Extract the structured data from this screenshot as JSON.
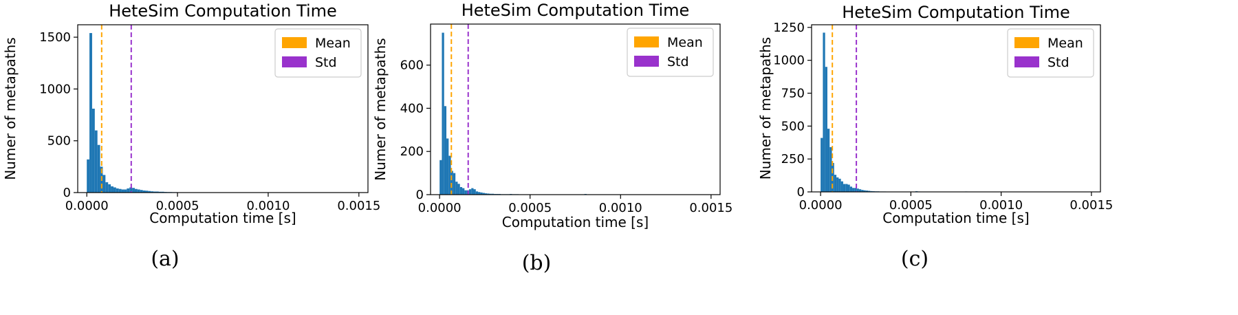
{
  "chart_data": [
    {
      "type": "bar",
      "caption": "(a)",
      "title": "HeteSim Computation Time",
      "xlabel": "Computation time [s]",
      "ylabel": "Numer of metapaths",
      "xlim": [
        -5e-05,
        0.00155
      ],
      "ylim": [
        0,
        1620
      ],
      "xticks": [
        0.0,
        0.0005,
        0.001,
        0.0015
      ],
      "xtick_labels": [
        "0.0000",
        "0.0005",
        "0.0010",
        "0.0015"
      ],
      "yticks": [
        0,
        500,
        1000,
        1500
      ],
      "ytick_labels": [
        "0",
        "500",
        "1000",
        "1500"
      ],
      "bin_start": 0.0,
      "bin_width": 1.47e-05,
      "values": [
        320,
        1540,
        810,
        600,
        460,
        250,
        170,
        100,
        80,
        60,
        50,
        40,
        35,
        30,
        30,
        40,
        50,
        45,
        35,
        30,
        25,
        20,
        18,
        15,
        12,
        10,
        10,
        8,
        8,
        6,
        5,
        5,
        4,
        4,
        3,
        3,
        3,
        3,
        2,
        2,
        2,
        2,
        1,
        1,
        1,
        1,
        1,
        1,
        1,
        1,
        1,
        2,
        2,
        2,
        1,
        1,
        1,
        1,
        1,
        1,
        1,
        1,
        1,
        2,
        1,
        1,
        1,
        1,
        1,
        1,
        1,
        1,
        1,
        1,
        3,
        1,
        1,
        1,
        0,
        0,
        0,
        0,
        0,
        0,
        0,
        0,
        0,
        0,
        0,
        0,
        0,
        0,
        0,
        0,
        0,
        0,
        0,
        0,
        0,
        0
      ],
      "series_color": "#1f77b4",
      "mean": 8.2e-05,
      "std": 0.000245,
      "legend": [
        {
          "label": "Mean",
          "color": "#ffa500"
        },
        {
          "label": "Std",
          "color": "#9932cc"
        }
      ],
      "legend_position": "top-right"
    },
    {
      "type": "bar",
      "caption": "(b)",
      "title": "HeteSim Computation Time",
      "xlabel": "Computation time [s]",
      "ylabel": "Numer of metapaths",
      "xlim": [
        -5e-05,
        0.00155
      ],
      "ylim": [
        0,
        790
      ],
      "xticks": [
        0.0,
        0.0005,
        0.001,
        0.0015
      ],
      "xtick_labels": [
        "0.0000",
        "0.0005",
        "0.0010",
        "0.0015"
      ],
      "yticks": [
        0,
        200,
        400,
        600
      ],
      "ytick_labels": [
        "0",
        "200",
        "400",
        "600"
      ],
      "bin_start": 0.0,
      "bin_width": 1.25e-05,
      "values": [
        160,
        750,
        410,
        260,
        180,
        110,
        100,
        60,
        50,
        35,
        30,
        20,
        20,
        25,
        30,
        25,
        15,
        12,
        10,
        8,
        6,
        5,
        4,
        4,
        3,
        3,
        3,
        2,
        2,
        2,
        2,
        3,
        2,
        2,
        2,
        1,
        1,
        1,
        1,
        1,
        1,
        1,
        1,
        1,
        1,
        1,
        1,
        1,
        1,
        1,
        1,
        1,
        1,
        1,
        1,
        1,
        1,
        1,
        1,
        1,
        1,
        1,
        1,
        1,
        3,
        1,
        1,
        1,
        0,
        0,
        0,
        0,
        0,
        0,
        0,
        0,
        0,
        0,
        0,
        0,
        0,
        0,
        0,
        0,
        0,
        0,
        0,
        0,
        0,
        0,
        0,
        0,
        0,
        0,
        0,
        0,
        0,
        0,
        0,
        0
      ],
      "series_color": "#1f77b4",
      "mean": 6.5e-05,
      "std": 0.000158,
      "legend": [
        {
          "label": "Mean",
          "color": "#ffa500"
        },
        {
          "label": "Std",
          "color": "#9932cc"
        }
      ],
      "legend_position": "top-right"
    },
    {
      "type": "bar",
      "caption": "(c)",
      "title": "HeteSim Computation Time",
      "xlabel": "Computation time [s]",
      "ylabel": "Numer of metapaths",
      "xlim": [
        -5e-05,
        0.00155
      ],
      "ylim": [
        0,
        1270
      ],
      "xticks": [
        0.0,
        0.0005,
        0.001,
        0.0015
      ],
      "xtick_labels": [
        "0.0000",
        "0.0005",
        "0.0010",
        "0.0015"
      ],
      "yticks": [
        0,
        250,
        500,
        750,
        1000,
        1250
      ],
      "ytick_labels": [
        "0",
        "250",
        "500",
        "750",
        "1000",
        "1250"
      ],
      "bin_start": 0.0,
      "bin_width": 1.25e-05,
      "values": [
        410,
        1210,
        950,
        480,
        340,
        220,
        130,
        110,
        100,
        80,
        60,
        60,
        55,
        40,
        30,
        30,
        25,
        20,
        15,
        12,
        10,
        8,
        6,
        5,
        4,
        4,
        3,
        3,
        3,
        2,
        2,
        2,
        2,
        2,
        2,
        2,
        2,
        2,
        2,
        2,
        2,
        2,
        5,
        3,
        2,
        1,
        1,
        1,
        1,
        1,
        1,
        1,
        1,
        1,
        1,
        1,
        1,
        1,
        1,
        1,
        1,
        1,
        1,
        1,
        3,
        1,
        1,
        1,
        0,
        0,
        0,
        0,
        1,
        0,
        0,
        0,
        0,
        0,
        0,
        0,
        0,
        0,
        0,
        0,
        0,
        0,
        0,
        0,
        0,
        0,
        0,
        0,
        0,
        0,
        0,
        0,
        0,
        0,
        0,
        0
      ],
      "series_color": "#1f77b4",
      "mean": 6.5e-05,
      "std": 0.000198,
      "legend": [
        {
          "label": "Mean",
          "color": "#ffa500"
        },
        {
          "label": "Std",
          "color": "#9932cc"
        }
      ],
      "legend_position": "top-right"
    }
  ]
}
